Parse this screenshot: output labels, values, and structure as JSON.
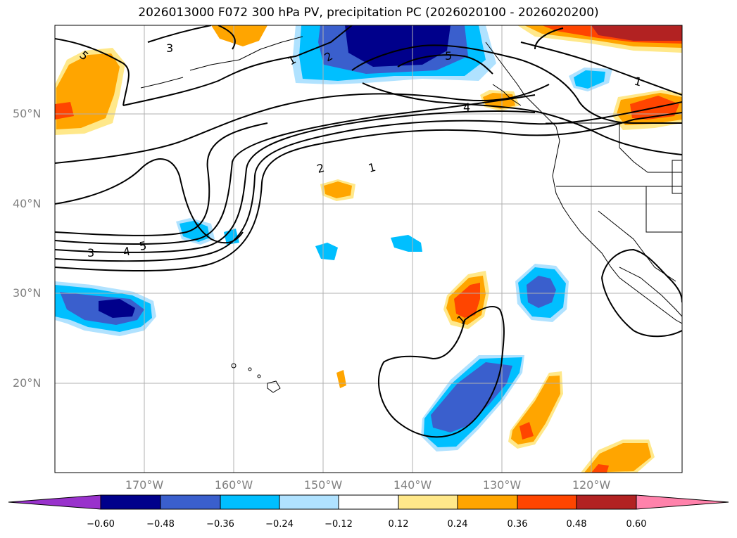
{
  "title": "2026013000 F072 300 hPa PV, precipitation PC (2026020100 - 2026020200)",
  "map": {
    "lat_labels": [
      "50°N",
      "40°N",
      "30°N",
      "20°N"
    ],
    "lon_labels": [
      "170°W",
      "160°W",
      "150°W",
      "140°W",
      "130°W",
      "120°W"
    ],
    "contour_labels": [
      "5",
      "3",
      "1",
      "2",
      "5",
      "4",
      "1",
      "2",
      "1",
      "3",
      "4",
      "5",
      "1"
    ]
  },
  "colorbar": {
    "ticks": [
      "−0.60",
      "−0.48",
      "−0.36",
      "−0.24",
      "−0.12",
      "0.12",
      "0.24",
      "0.36",
      "0.48",
      "0.60"
    ],
    "colors": [
      "#9932cc",
      "#00008b",
      "#3a5fcd",
      "#00bfff",
      "#b0e2ff",
      "#ffffff",
      "#ffe88a",
      "#ffa500",
      "#ff4500",
      "#b22222",
      "#ff82ab"
    ]
  },
  "colors": {
    "grid": "#b0b0b0",
    "contour": "#000000"
  }
}
